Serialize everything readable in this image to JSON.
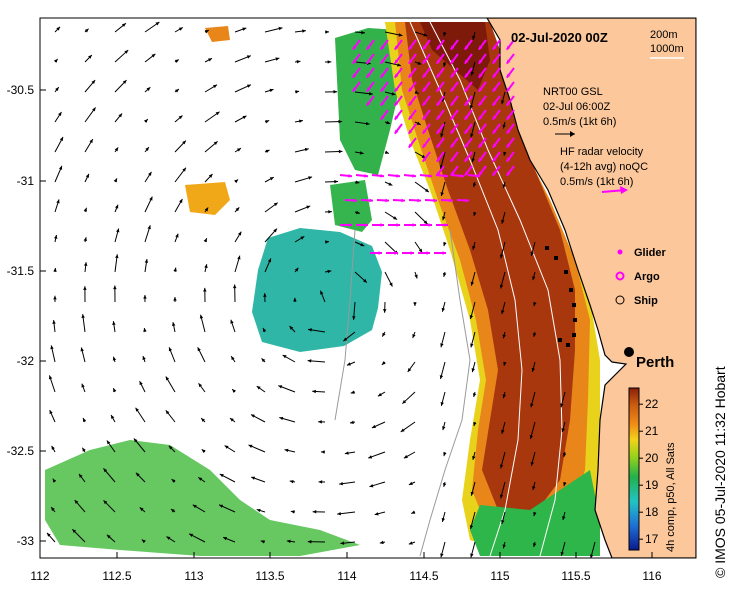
{
  "map": {
    "date_label": "02-Jul-2020 00Z",
    "isobath_labels": [
      "200m",
      "1000m"
    ],
    "lon_ticks": [
      "112",
      "112.5",
      "113",
      "113.5",
      "114",
      "114.5",
      "115",
      "115.5",
      "116"
    ],
    "lat_ticks": [
      "-30.5",
      "-31",
      "-31.5",
      "-32",
      "-32.5",
      "-33"
    ],
    "city_label": "Perth",
    "credit": "© IMOS 05-Jul-2020 11:32 Hobart"
  },
  "legend": {
    "gsl_lines": [
      "NRT00 GSL",
      "02-Jul 06:00Z",
      "0.5m/s (1kt 6h)"
    ],
    "hf_lines": [
      "HF radar velocity",
      "(4-12h avg) noQC",
      "0.5m/s (1kt 6h)"
    ],
    "symbols": [
      {
        "label": "Glider",
        "color": "#ff00ff"
      },
      {
        "label": "Argo",
        "color": "#ff00ff"
      },
      {
        "label": "Ship",
        "color": "#000000"
      }
    ]
  },
  "colorbar": {
    "ticks": [
      "22",
      "21",
      "20",
      "19",
      "18",
      "17"
    ],
    "label": "4h comp, p50, All Sats",
    "range": [
      16.6,
      22.6
    ]
  },
  "colors": {
    "land": "#fcc89b",
    "hf_arrow": "#ff00ff",
    "gsl_arrow": "#000000",
    "isobath": "#ffffff",
    "ocean_blank": "#ffffff"
  }
}
